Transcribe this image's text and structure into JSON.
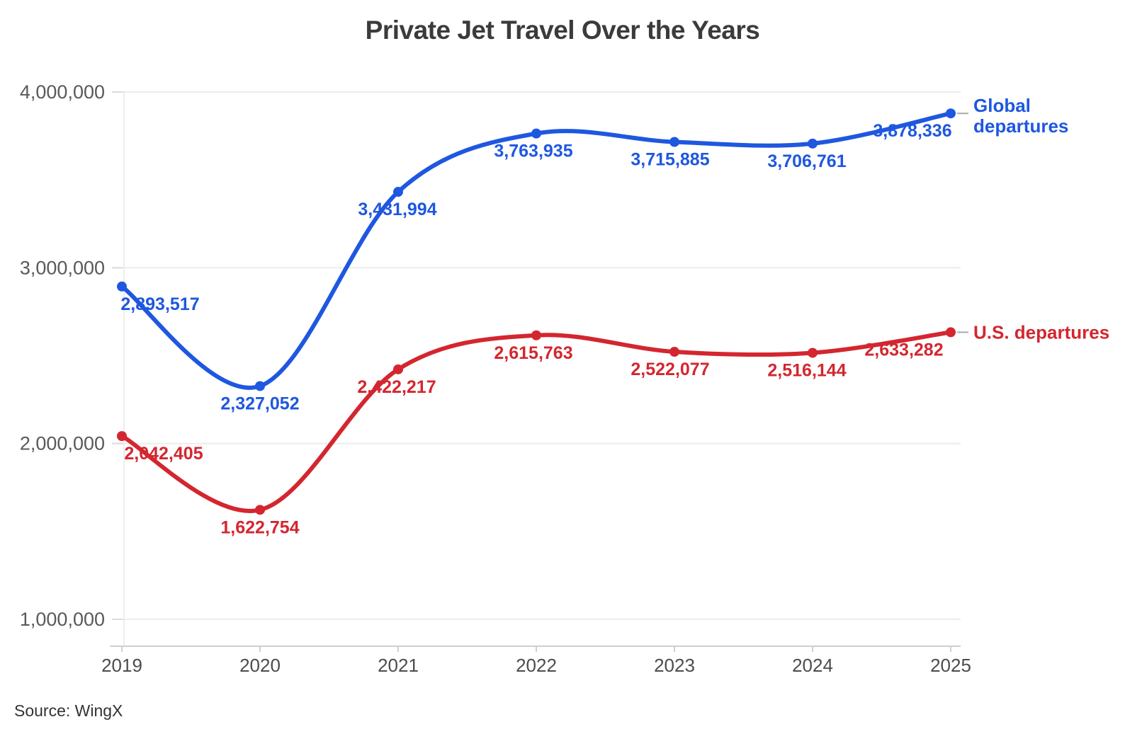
{
  "chart_data": {
    "type": "line",
    "title": "Private Jet Travel Over the Years",
    "x": [
      "2019",
      "2020",
      "2021",
      "2022",
      "2023",
      "2024",
      "2025"
    ],
    "series": [
      {
        "name": "Global departures",
        "legend_lines": [
          "Global",
          "departures"
        ],
        "color": "#1e57e0",
        "values": [
          2893517,
          2327052,
          3431994,
          3763935,
          3715885,
          3706761,
          3878336
        ],
        "labels": [
          "2,893,517",
          "2,327,052",
          "3,431,994",
          "3,763,935",
          "3,715,885",
          "3,706,761",
          "3,878,336"
        ]
      },
      {
        "name": "U.S. departures",
        "legend_lines": [
          "U.S. departures"
        ],
        "color": "#d4262f",
        "values": [
          2042405,
          1622754,
          2422217,
          2615763,
          2522077,
          2516144,
          2633282
        ],
        "labels": [
          "2,042,405",
          "1,622,754",
          "2,422,217",
          "2,615,763",
          "2,522,077",
          "2,516,144",
          "2,633,282"
        ]
      }
    ],
    "yticks": [
      1000000,
      2000000,
      3000000,
      4000000
    ],
    "ytick_labels": [
      "1,000,000",
      "2,000,000",
      "3,000,000",
      "4,000,000"
    ],
    "ylim": [
      1000000,
      4000000
    ],
    "xlabel": "",
    "ylabel": "",
    "grid": "horizontal",
    "legend_position": "right-of-line-ends",
    "point_labels": true
  },
  "source": "Source: WingX"
}
